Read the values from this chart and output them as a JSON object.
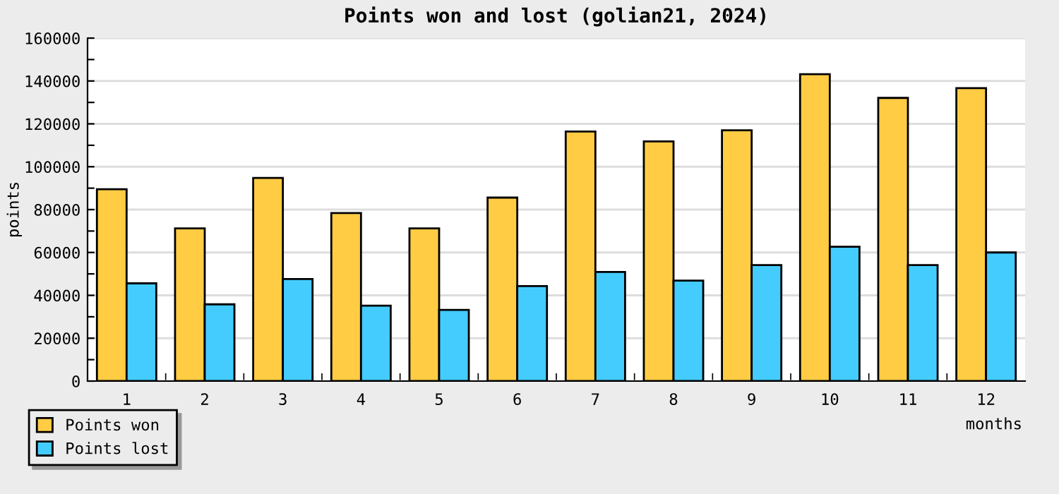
{
  "chart_data": {
    "type": "bar",
    "title": "Points won and lost (golian21, 2024)",
    "xlabel": "months",
    "ylabel": "points",
    "categories": [
      "1",
      "2",
      "3",
      "4",
      "5",
      "6",
      "7",
      "8",
      "9",
      "10",
      "11",
      "12"
    ],
    "series": [
      {
        "name": "Points won",
        "color": "#ffcc44",
        "values": [
          89500,
          71200,
          94800,
          78400,
          71200,
          85600,
          116400,
          111800,
          117000,
          143200,
          132100,
          136700
        ]
      },
      {
        "name": "Points lost",
        "color": "#44ccff",
        "values": [
          45600,
          35800,
          47600,
          35200,
          33200,
          44300,
          50900,
          46900,
          54100,
          62700,
          54100,
          60000
        ]
      }
    ],
    "ylim": [
      0,
      160000
    ],
    "yticks": [
      0,
      {
        "value": 10000,
        "label": null
      },
      20000,
      {
        "value": 30000,
        "label": null
      },
      40000,
      {
        "value": 50000,
        "label": null
      },
      60000,
      {
        "value": 70000,
        "label": null
      },
      80000,
      {
        "value": 90000,
        "label": null
      },
      100000,
      {
        "value": 110000,
        "label": null
      },
      120000,
      {
        "value": 130000,
        "label": null
      },
      140000,
      {
        "value": 150000,
        "label": null
      },
      160000
    ],
    "grid": "y",
    "legend": "bottom left"
  }
}
